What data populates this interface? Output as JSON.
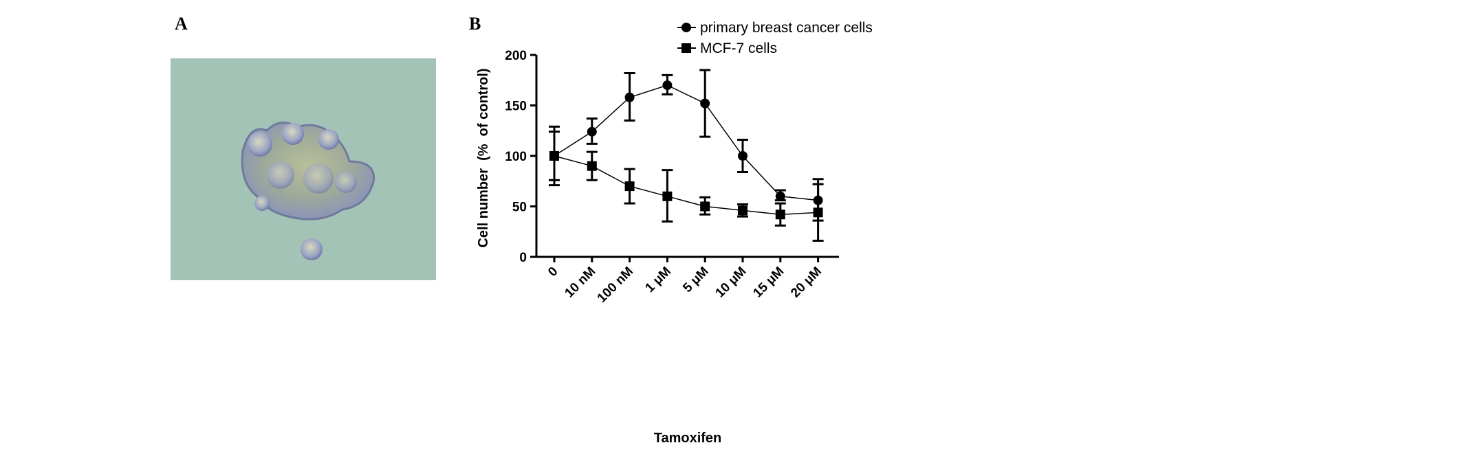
{
  "panels": {
    "a_label": "A",
    "b_label": "B"
  },
  "chart_data": {
    "type": "line",
    "title": "",
    "xlabel": "Tamoxifen",
    "ylabel": "Cell number  (%  of control)",
    "categories": [
      "0",
      "10 nM",
      "100 nM",
      "1 μM",
      "5 μM",
      "10 μM",
      "15 μM",
      "20 μM"
    ],
    "ylim": [
      0,
      200
    ],
    "yticks": [
      0,
      50,
      100,
      150,
      200
    ],
    "grid": false,
    "legend_position": "top-right",
    "series": [
      {
        "name": "primary breast cancer cells",
        "marker": "circle",
        "color": "#000000",
        "values": [
          100,
          124,
          158,
          170,
          152,
          100,
          60,
          56
        ],
        "err_low": [
          71,
          112,
          135,
          161,
          119,
          84,
          56,
          36
        ],
        "err_high": [
          129,
          137,
          182,
          180,
          185,
          116,
          66,
          77
        ]
      },
      {
        "name": "MCF-7 cells",
        "marker": "square",
        "color": "#000000",
        "values": [
          100,
          90,
          70,
          60,
          50,
          46,
          42,
          44
        ],
        "err_low": [
          76,
          76,
          53,
          35,
          42,
          40,
          31,
          16
        ],
        "err_high": [
          124,
          104,
          87,
          86,
          59,
          52,
          53,
          72
        ]
      }
    ]
  }
}
